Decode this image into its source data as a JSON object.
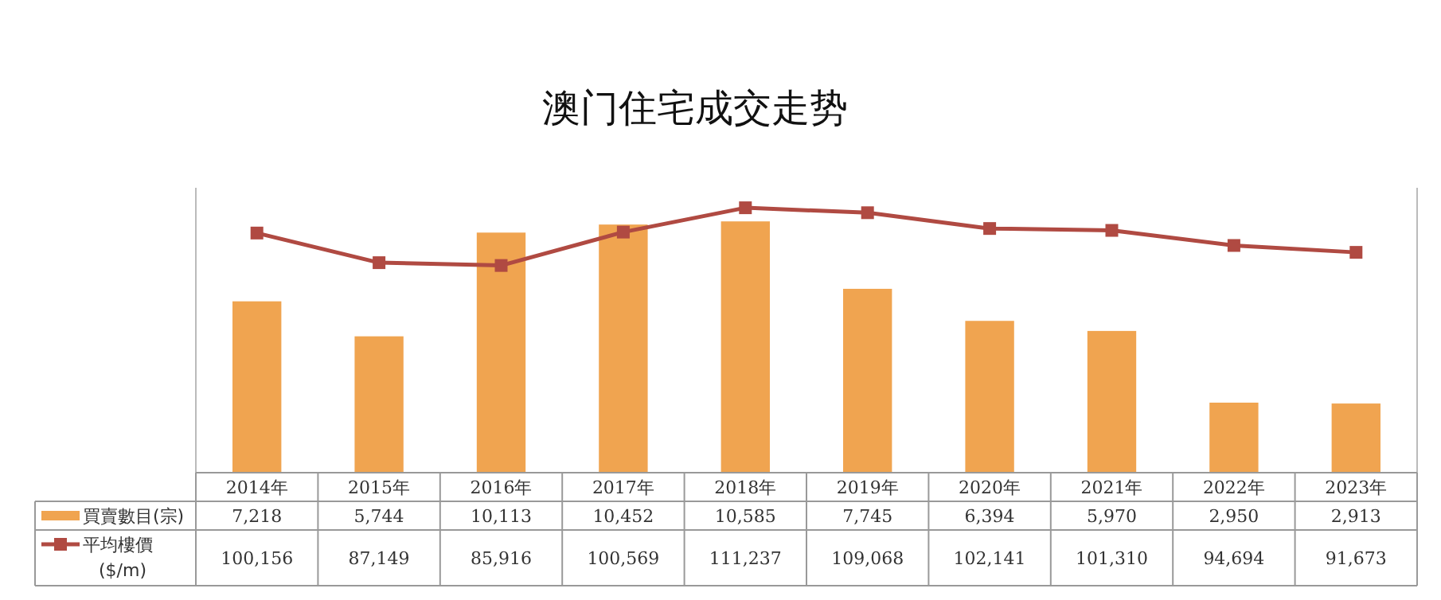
{
  "chart_data": {
    "type": "bar",
    "title": "澳门住宅成交走势",
    "categories": [
      "2014年",
      "2015年",
      "2016年",
      "2017年",
      "2018年",
      "2019年",
      "2020年",
      "2021年",
      "2022年",
      "2023年"
    ],
    "series": [
      {
        "name": "買賣數目(宗)",
        "color": "#f0a450",
        "values": [
          7218,
          5744,
          10113,
          10452,
          10585,
          7745,
          6394,
          5970,
          2950,
          2913
        ],
        "value_labels": [
          "7,218",
          "5,744",
          "10,113",
          "10,452",
          "10,585",
          "7,745",
          "6,394",
          "5,970",
          "2,950",
          "2,913"
        ]
      },
      {
        "name": "平均樓價($/m)",
        "type": "line",
        "axis": "y2",
        "color": "#b04a42",
        "values": [
          100156,
          87149,
          85916,
          100569,
          111237,
          109068,
          102141,
          101310,
          94694,
          91673
        ],
        "value_labels": [
          "100,156",
          "87,149",
          "85,916",
          "100,569",
          "111,237",
          "109,068",
          "102,141",
          "101,310",
          "94,694",
          "91,673"
        ]
      }
    ],
    "ylim": [
      0,
      12000
    ],
    "y2lim": [
      -5000,
      120000
    ],
    "tick_labels": "x",
    "legend": "bottom left",
    "marker": "square",
    "line_style": "solid"
  }
}
